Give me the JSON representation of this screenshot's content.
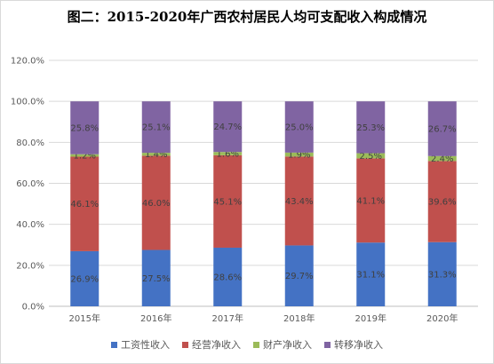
{
  "chart_data": {
    "type": "bar",
    "stacked": true,
    "title": "图二：2015-2020年广西农村居民人均可支配收入构成情况",
    "categories": [
      "2015年",
      "2016年",
      "2017年",
      "2018年",
      "2019年",
      "2020年"
    ],
    "series": [
      {
        "name": "工资性收入",
        "color": "#4472c4",
        "values": [
          26.9,
          27.5,
          28.6,
          29.7,
          31.1,
          31.3
        ]
      },
      {
        "name": "经营净收入",
        "color": "#c0504d",
        "values": [
          46.1,
          46.0,
          45.1,
          43.4,
          41.1,
          39.6
        ]
      },
      {
        "name": "财产净收入",
        "color": "#9bbb59",
        "values": [
          1.2,
          1.4,
          1.6,
          1.9,
          2.5,
          2.4
        ]
      },
      {
        "name": "转移净收入",
        "color": "#8064a2",
        "values": [
          25.8,
          25.1,
          24.7,
          25.0,
          25.3,
          26.7
        ]
      }
    ],
    "data_labels": [
      [
        "26.9%",
        "27.5%",
        "28.6%",
        "29.7%",
        "31.1%",
        "31.3%"
      ],
      [
        "46.1%",
        "46.0%",
        "45.1%",
        "43.4%",
        "41.1%",
        "39.6%"
      ],
      [
        "1.2%",
        "1.4%",
        "1.6%",
        "1.9%",
        "2.5%",
        "2.4%"
      ],
      [
        "25.8%",
        "25.1%",
        "24.7%",
        "25.0%",
        "25.3%",
        "26.7%"
      ]
    ],
    "ylim": [
      0,
      120
    ],
    "yticks": [
      "0.0%",
      "20.0%",
      "40.0%",
      "60.0%",
      "80.0%",
      "100.0%",
      "120.0%"
    ],
    "grid": true,
    "legend_position": "bottom"
  }
}
